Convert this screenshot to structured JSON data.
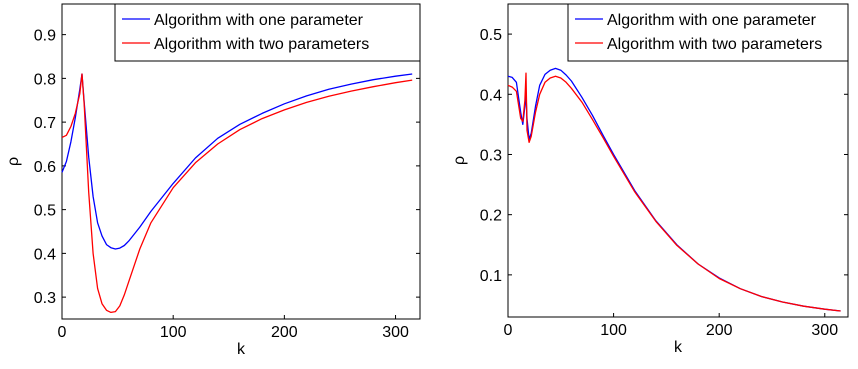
{
  "chart_data": [
    {
      "type": "line",
      "xlabel": "k",
      "ylabel": "ρ",
      "xlim": [
        0,
        322
      ],
      "ylim": [
        0.25,
        0.97
      ],
      "xticks": [
        "0",
        "100",
        "200",
        "300"
      ],
      "xtick_values": [
        0,
        100,
        200,
        300
      ],
      "yticks": [
        "0.3",
        "0.4",
        "0.5",
        "0.6",
        "0.7",
        "0.8",
        "0.9"
      ],
      "ytick_values": [
        0.3,
        0.4,
        0.5,
        0.6,
        0.7,
        0.8,
        0.9
      ],
      "legend": "top-right",
      "series": [
        {
          "name": "Algorithm with one parameter",
          "color": "#0000ff",
          "x": [
            0,
            4,
            8,
            12,
            16,
            18,
            20,
            24,
            28,
            32,
            36,
            40,
            44,
            48,
            52,
            56,
            60,
            70,
            80,
            100,
            120,
            140,
            160,
            180,
            200,
            220,
            240,
            260,
            280,
            300,
            315
          ],
          "y": [
            0.585,
            0.61,
            0.655,
            0.71,
            0.775,
            0.81,
            0.745,
            0.62,
            0.53,
            0.47,
            0.44,
            0.42,
            0.413,
            0.41,
            0.412,
            0.418,
            0.428,
            0.46,
            0.496,
            0.56,
            0.618,
            0.663,
            0.695,
            0.72,
            0.742,
            0.76,
            0.775,
            0.787,
            0.797,
            0.805,
            0.81
          ]
        },
        {
          "name": "Algorithm with two parameters",
          "color": "#ff0000",
          "x": [
            0,
            4,
            8,
            12,
            16,
            18,
            20,
            24,
            28,
            32,
            36,
            40,
            44,
            48,
            52,
            56,
            60,
            70,
            80,
            100,
            120,
            140,
            160,
            180,
            200,
            220,
            240,
            260,
            280,
            300,
            315
          ],
          "y": [
            0.665,
            0.67,
            0.69,
            0.72,
            0.765,
            0.81,
            0.74,
            0.54,
            0.4,
            0.32,
            0.285,
            0.27,
            0.265,
            0.267,
            0.28,
            0.305,
            0.335,
            0.41,
            0.47,
            0.55,
            0.607,
            0.65,
            0.683,
            0.708,
            0.728,
            0.745,
            0.759,
            0.771,
            0.781,
            0.79,
            0.796
          ]
        }
      ]
    },
    {
      "type": "line",
      "xlabel": "k",
      "ylabel": "ρ",
      "xlim": [
        0,
        322
      ],
      "ylim": [
        0.03,
        0.55
      ],
      "xticks": [
        "0",
        "100",
        "200",
        "300"
      ],
      "xtick_values": [
        0,
        100,
        200,
        300
      ],
      "yticks": [
        "0.1",
        "0.2",
        "0.3",
        "0.4",
        "0.5"
      ],
      "ytick_values": [
        0.1,
        0.2,
        0.3,
        0.4,
        0.5
      ],
      "legend": "top-right",
      "series": [
        {
          "name": "Algorithm with one parameter",
          "color": "#0000ff",
          "x": [
            0,
            4,
            8,
            12,
            14,
            16,
            17,
            18,
            20,
            22,
            26,
            30,
            35,
            40,
            45,
            50,
            55,
            60,
            70,
            80,
            90,
            100,
            120,
            140,
            160,
            180,
            200,
            220,
            240,
            260,
            280,
            300,
            315
          ],
          "y": [
            0.43,
            0.428,
            0.42,
            0.37,
            0.35,
            0.38,
            0.4,
            0.36,
            0.325,
            0.335,
            0.38,
            0.415,
            0.433,
            0.44,
            0.443,
            0.44,
            0.432,
            0.422,
            0.395,
            0.365,
            0.332,
            0.3,
            0.24,
            0.19,
            0.15,
            0.118,
            0.095,
            0.077,
            0.064,
            0.055,
            0.048,
            0.043,
            0.04
          ]
        },
        {
          "name": "Algorithm with two parameters",
          "color": "#ff0000",
          "x": [
            0,
            4,
            8,
            12,
            14,
            16,
            17,
            18,
            20,
            22,
            26,
            30,
            35,
            40,
            45,
            50,
            55,
            60,
            70,
            80,
            90,
            100,
            120,
            140,
            160,
            180,
            200,
            220,
            240,
            260,
            280,
            300,
            315
          ],
          "y": [
            0.415,
            0.412,
            0.405,
            0.36,
            0.355,
            0.39,
            0.435,
            0.34,
            0.32,
            0.33,
            0.37,
            0.4,
            0.42,
            0.427,
            0.43,
            0.427,
            0.42,
            0.41,
            0.387,
            0.358,
            0.328,
            0.297,
            0.238,
            0.189,
            0.149,
            0.118,
            0.094,
            0.077,
            0.064,
            0.055,
            0.048,
            0.043,
            0.04
          ]
        }
      ]
    }
  ]
}
